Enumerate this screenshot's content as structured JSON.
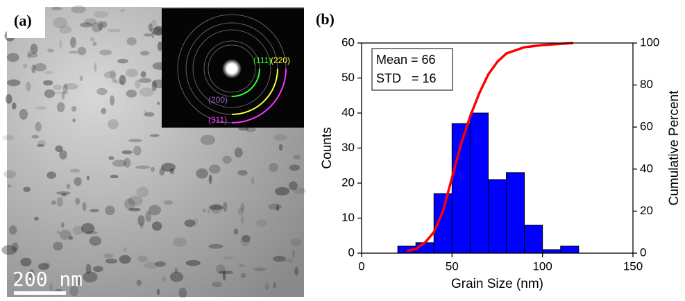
{
  "image_panel": {
    "label": "(a)",
    "scale_bar": "200 nm",
    "rings": [
      {
        "label": "(111)",
        "color": "#33ff33"
      },
      {
        "label": "(220)",
        "color": "#ffff33"
      },
      {
        "label": "(200)",
        "color": "#9966cc"
      },
      {
        "label": "(311)",
        "color": "#ff33ff"
      }
    ]
  },
  "chart_data": {
    "type": "histogram",
    "panel_label": "(b)",
    "bins": [
      20,
      30,
      40,
      50,
      60,
      70,
      80,
      90,
      100,
      110,
      120
    ],
    "values": [
      2,
      3,
      17,
      37,
      40,
      21,
      23,
      8,
      1,
      2
    ],
    "color": "#0000ff",
    "cumulative": {
      "x": [
        25,
        30,
        35,
        40,
        45,
        50,
        55,
        60,
        65,
        70,
        75,
        80,
        90,
        100,
        117
      ],
      "values": [
        1,
        2,
        5,
        10,
        20,
        36,
        52,
        65,
        76,
        85,
        91,
        95,
        98,
        99,
        100
      ],
      "color": "#ff0000",
      "axis": "y2"
    },
    "xlim": [
      0,
      150
    ],
    "xticks": [
      0,
      50,
      100,
      150
    ],
    "ylim": [
      0,
      60
    ],
    "yticks": [
      0,
      10,
      20,
      30,
      40,
      50,
      60
    ],
    "y2lim": [
      0,
      100
    ],
    "y2ticks": [
      0,
      20,
      40,
      60,
      80,
      100
    ],
    "xlabel": "Grain Size (nm)",
    "ylabel": "Counts",
    "y2label": "Cumulative Percent",
    "annotations": [
      "Mean = 66",
      "STD   = 16"
    ]
  }
}
